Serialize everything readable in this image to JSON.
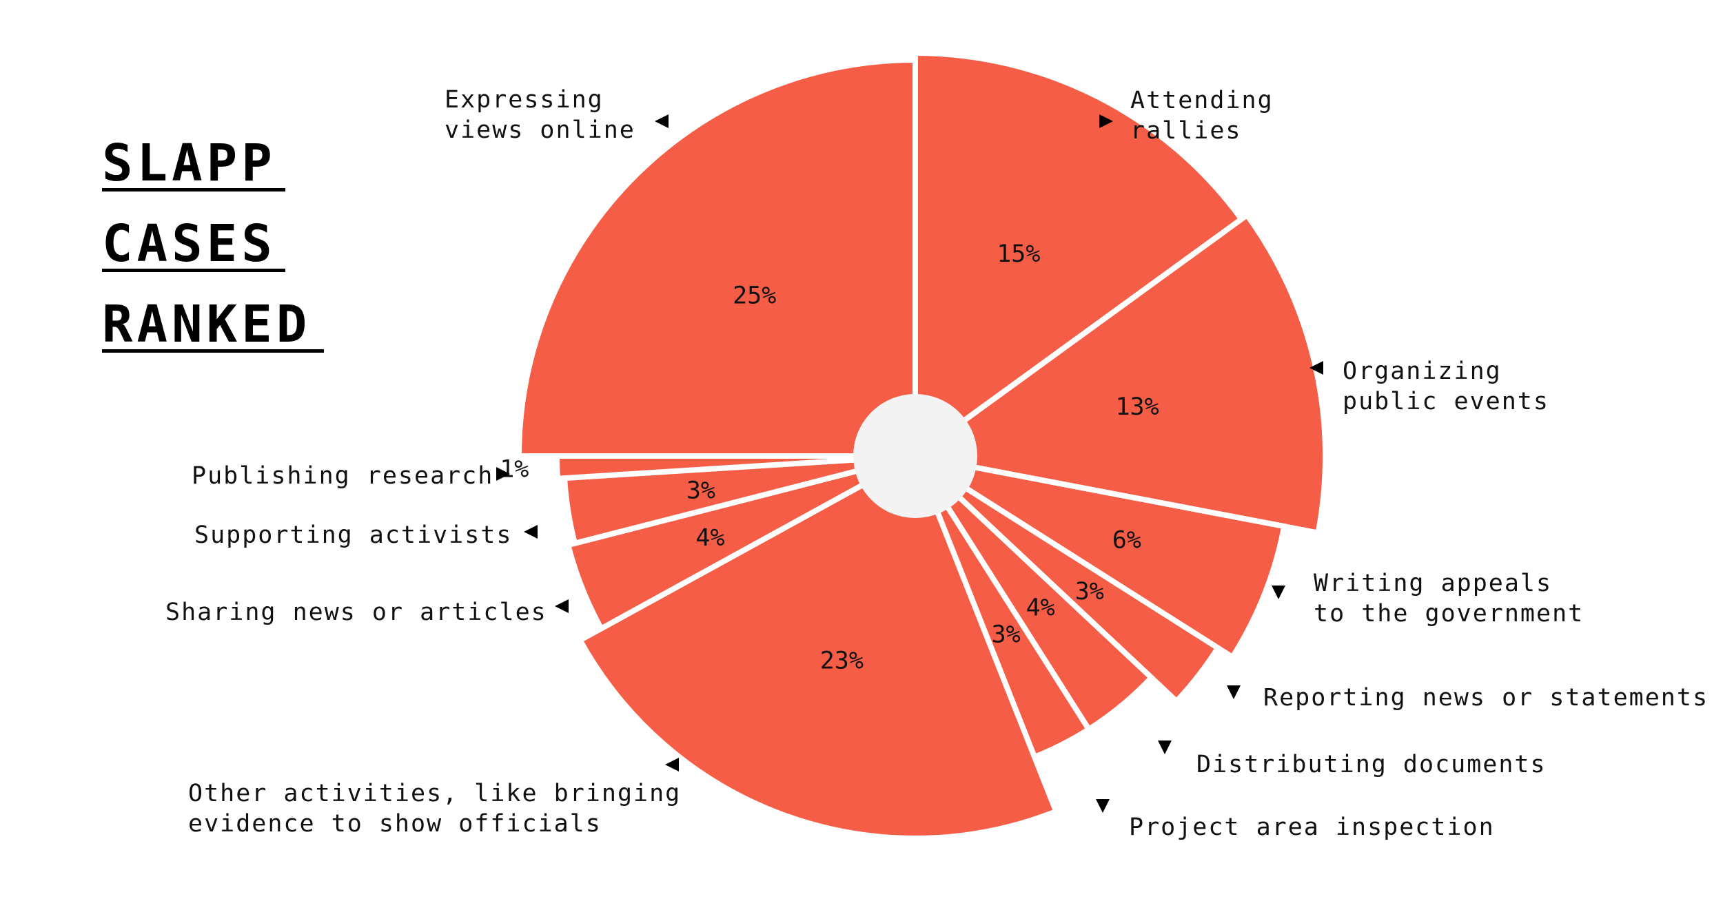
{
  "title_lines": [
    "SLAPP",
    "CASES",
    "RANKED"
  ],
  "colors": {
    "slice": "#F55D46",
    "separator": "#ffffff",
    "text": "#111111",
    "hole": "#f3f3f3"
  },
  "chart_data": {
    "type": "pie",
    "title": "SLAPP CASES RANKED",
    "unit": "%",
    "slices": [
      {
        "label": "Attending rallies",
        "value": 15,
        "value_label": "15%"
      },
      {
        "label": "Organizing public events",
        "value": 13,
        "value_label": "13%"
      },
      {
        "label": "Writing appeals to the government",
        "value": 6,
        "value_label": "6%"
      },
      {
        "label": "Reporting news or statements",
        "value": 3,
        "value_label": "3%"
      },
      {
        "label": "Distributing documents",
        "value": 4,
        "value_label": "4%"
      },
      {
        "label": "Project area inspection",
        "value": 3,
        "value_label": "3%"
      },
      {
        "label": "Other activities, like bringing evidence to show officials",
        "value": 23,
        "value_label": "23%"
      },
      {
        "label": "Sharing news or articles",
        "value": 4,
        "value_label": "4%"
      },
      {
        "label": "Supporting activists",
        "value": 3,
        "value_label": "3%"
      },
      {
        "label": "Publishing research",
        "value": 1,
        "value_label": "1%"
      },
      {
        "label": "Expressing views online",
        "value": 25,
        "value_label": "25%"
      }
    ]
  }
}
